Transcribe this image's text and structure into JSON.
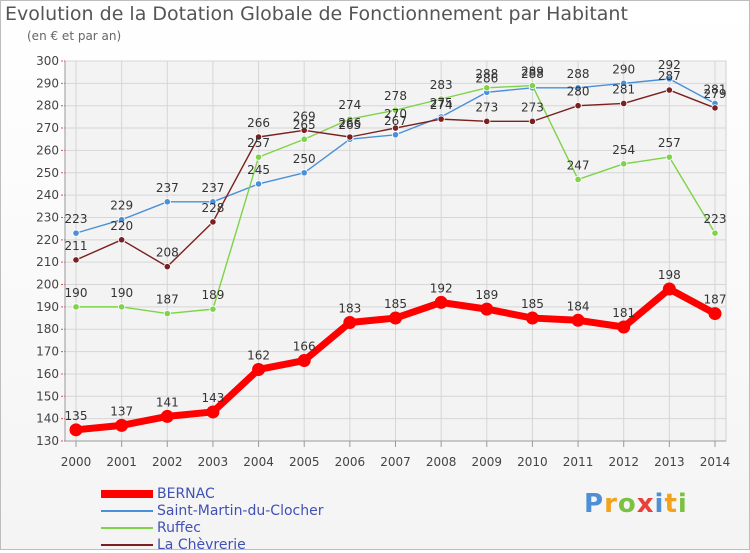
{
  "title": "Evolution de la Dotation Globale de Fonctionnement par Habitant",
  "subtitle": "(en € et par an)",
  "logo": [
    "P",
    "r",
    "o",
    "x",
    "i",
    "t",
    "i"
  ],
  "logo_colors": [
    "#4e8fd6",
    "#f2a21b",
    "#7cc242",
    "#e8413a",
    "#4e8fd6",
    "#f2a21b",
    "#7cc242"
  ],
  "chart_data": {
    "type": "line",
    "x": [
      2000,
      2001,
      2002,
      2003,
      2004,
      2005,
      2006,
      2007,
      2008,
      2009,
      2010,
      2011,
      2012,
      2013,
      2014
    ],
    "ylim": [
      130,
      300
    ],
    "yticks": [
      130,
      140,
      150,
      160,
      170,
      180,
      190,
      200,
      210,
      220,
      230,
      240,
      250,
      260,
      270,
      280,
      290,
      300
    ],
    "grid": true,
    "series": [
      {
        "name": "BERNAC",
        "color": "#ff0000",
        "values": [
          135,
          137,
          141,
          143,
          162,
          166,
          183,
          185,
          192,
          189,
          185,
          184,
          181,
          198,
          187
        ]
      },
      {
        "name": "Saint-Martin-du-Clocher",
        "color": "#4a90d9",
        "values": [
          223,
          229,
          237,
          237,
          245,
          250,
          265,
          267,
          275,
          286,
          288,
          288,
          290,
          292,
          281
        ]
      },
      {
        "name": "Ruffec",
        "color": "#7ed348",
        "values": [
          190,
          190,
          187,
          189,
          257,
          265,
          274,
          278,
          283,
          288,
          289,
          247,
          254,
          257,
          223
        ]
      },
      {
        "name": "La Chèvrerie",
        "color": "#7a2020",
        "values": [
          211,
          220,
          208,
          228,
          266,
          269,
          266,
          270,
          274,
          273,
          273,
          280,
          281,
          287,
          279
        ]
      }
    ]
  }
}
